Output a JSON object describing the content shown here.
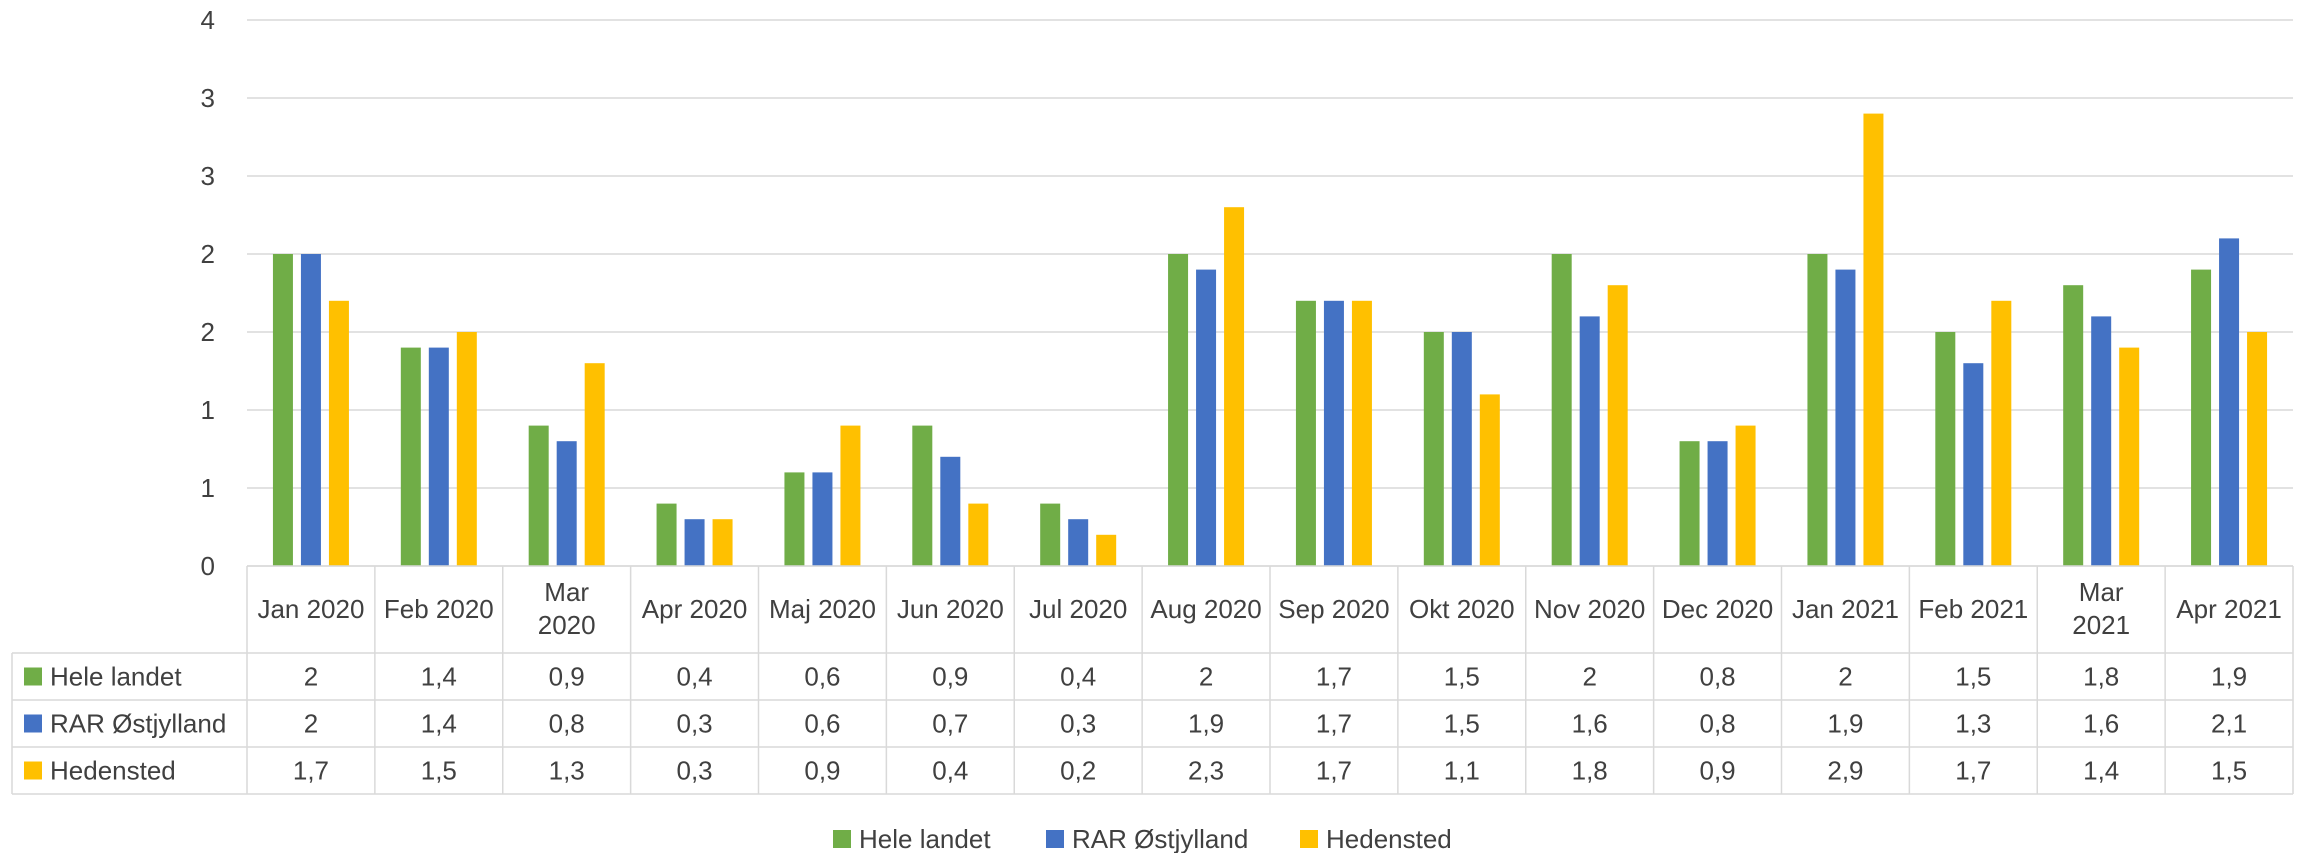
{
  "colors": {
    "hele_landet": "#70AD47",
    "rar_ostjylland": "#4472C4",
    "hedensted": "#FFC000",
    "grid": "#D9D9D9",
    "text": "#404040"
  },
  "chart_data": {
    "type": "bar",
    "title": "",
    "xlabel": "",
    "ylabel": "",
    "ylim": [
      0,
      3.5
    ],
    "y_tick_values": [
      0,
      0.5,
      1,
      1.5,
      2,
      2.5,
      3,
      3.5
    ],
    "y_tick_labels": [
      "0",
      "1",
      "1",
      "2",
      "2",
      "3",
      "3",
      "4"
    ],
    "grid": true,
    "legend_position": "bottom",
    "data_table": true,
    "categories": [
      [
        "Jan 2020"
      ],
      [
        "Feb 2020"
      ],
      [
        "Mar",
        "2020"
      ],
      [
        "Apr 2020"
      ],
      [
        "Maj 2020"
      ],
      [
        "Jun 2020"
      ],
      [
        "Jul 2020"
      ],
      [
        "Aug 2020"
      ],
      [
        "Sep 2020"
      ],
      [
        "Okt 2020"
      ],
      [
        "Nov 2020"
      ],
      [
        "Dec 2020"
      ],
      [
        "Jan 2021"
      ],
      [
        "Feb 2021"
      ],
      [
        "Mar",
        "2021"
      ],
      [
        "Apr 2021"
      ]
    ],
    "series": [
      {
        "name": "Hele landet",
        "color": "#70AD47",
        "values": [
          2,
          1.4,
          0.9,
          0.4,
          0.6,
          0.9,
          0.4,
          2,
          1.7,
          1.5,
          2,
          0.8,
          2,
          1.5,
          1.8,
          1.9
        ],
        "labels": [
          "2",
          "1,4",
          "0,9",
          "0,4",
          "0,6",
          "0,9",
          "0,4",
          "2",
          "1,7",
          "1,5",
          "2",
          "0,8",
          "2",
          "1,5",
          "1,8",
          "1,9"
        ]
      },
      {
        "name": "RAR Østjylland",
        "color": "#4472C4",
        "values": [
          2,
          1.4,
          0.8,
          0.3,
          0.6,
          0.7,
          0.3,
          1.9,
          1.7,
          1.5,
          1.6,
          0.8,
          1.9,
          1.3,
          1.6,
          2.1
        ],
        "labels": [
          "2",
          "1,4",
          "0,8",
          "0,3",
          "0,6",
          "0,7",
          "0,3",
          "1,9",
          "1,7",
          "1,5",
          "1,6",
          "0,8",
          "1,9",
          "1,3",
          "1,6",
          "2,1"
        ]
      },
      {
        "name": "Hedensted",
        "color": "#FFC000",
        "values": [
          1.7,
          1.5,
          1.3,
          0.3,
          0.9,
          0.4,
          0.2,
          2.3,
          1.7,
          1.1,
          1.8,
          0.9,
          2.9,
          1.7,
          1.4,
          1.5
        ],
        "labels": [
          "1,7",
          "1,5",
          "1,3",
          "0,3",
          "0,9",
          "0,4",
          "0,2",
          "2,3",
          "1,7",
          "1,1",
          "1,8",
          "0,9",
          "2,9",
          "1,7",
          "1,4",
          "1,5"
        ]
      }
    ]
  }
}
